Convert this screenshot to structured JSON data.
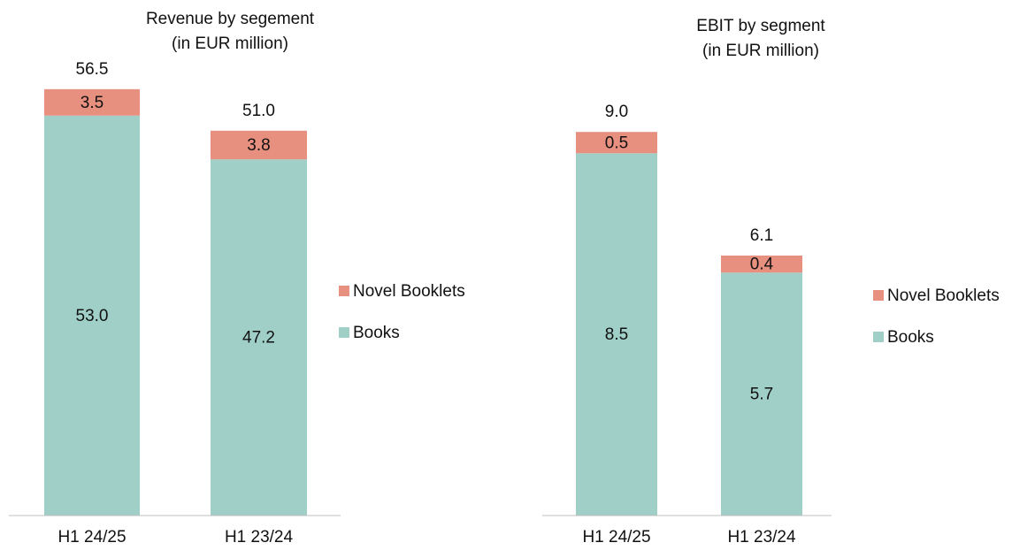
{
  "chart_data": [
    {
      "type": "stacked_bar",
      "title": "Revenue by segement",
      "subtitle": "(in EUR million)",
      "categories": [
        "H1 24/25",
        "H1 23/24"
      ],
      "series": [
        {
          "name": "Books",
          "color": "#9fcfc7",
          "values": [
            53.0,
            47.2
          ],
          "value_labels": [
            "53.0",
            "47.2"
          ]
        },
        {
          "name": "Novel Booklets",
          "color": "#e8907f",
          "values": [
            3.5,
            3.8
          ],
          "value_labels": [
            "3.5",
            "3.8"
          ]
        }
      ],
      "totals": [
        56.5,
        51.0
      ],
      "total_labels": [
        "56.5",
        "51.0"
      ],
      "ylim": [
        0,
        60
      ],
      "legend": "right"
    },
    {
      "type": "stacked_bar",
      "title": "EBIT by segment",
      "subtitle": "(in EUR million)",
      "categories": [
        "H1 24/25",
        "H1 23/24"
      ],
      "series": [
        {
          "name": "Books",
          "color": "#9fcfc7",
          "values": [
            8.5,
            5.7
          ],
          "value_labels": [
            "8.5",
            "5.7"
          ]
        },
        {
          "name": "Novel Booklets",
          "color": "#e8907f",
          "values": [
            0.5,
            0.4
          ],
          "value_labels": [
            "0.5",
            "0.4"
          ]
        }
      ],
      "totals": [
        9.0,
        6.1
      ],
      "total_labels": [
        "9.0",
        "6.1"
      ],
      "ylim": [
        0,
        10
      ],
      "legend": "right"
    }
  ]
}
